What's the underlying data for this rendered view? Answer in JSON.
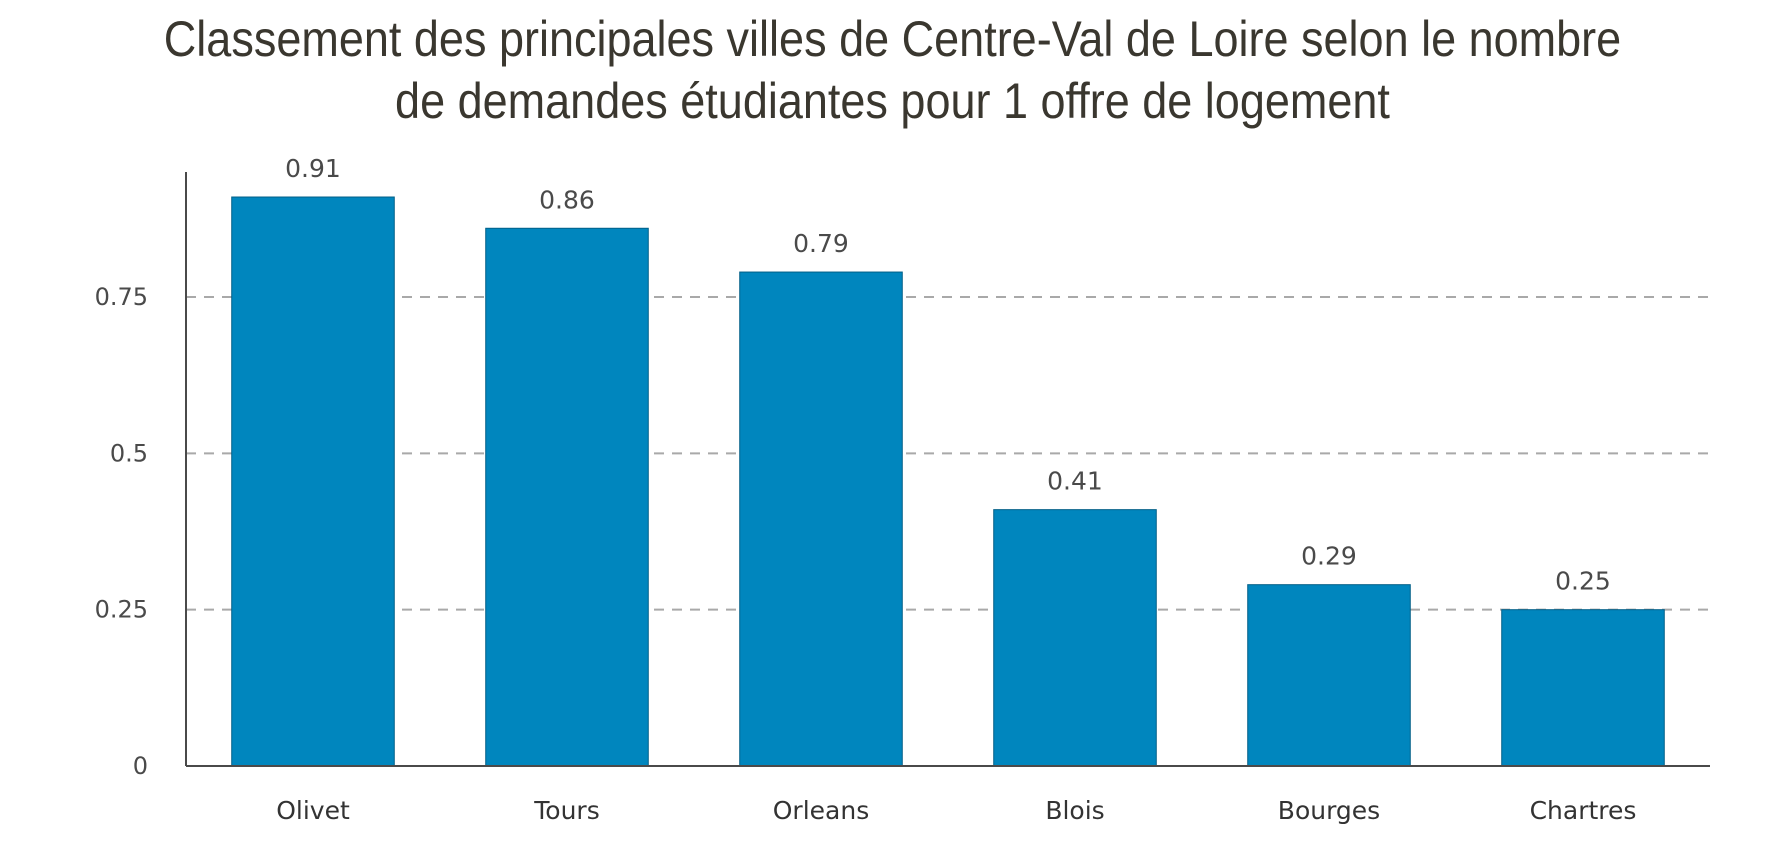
{
  "chart_data": {
    "type": "bar",
    "title_lines": [
      "Classement des principales villes de Centre-Val de Loire selon le nombre",
      "de demandes étudiantes pour 1 offre de logement"
    ],
    "categories": [
      "Olivet",
      "Tours",
      "Orleans",
      "Blois",
      "Bourges",
      "Chartres"
    ],
    "values": [
      0.91,
      0.86,
      0.79,
      0.41,
      0.29,
      0.25
    ],
    "data_labels": [
      "0.91",
      "0.86",
      "0.79",
      "0.41",
      "0.29",
      "0.25"
    ],
    "yticks": [
      0,
      0.25,
      0.5,
      0.75
    ],
    "ytick_labels": [
      "0",
      "0.25",
      "0.5",
      "0.75"
    ],
    "ylim": [
      0,
      0.95
    ],
    "xlabel": "",
    "ylabel": "",
    "grid": "horizontal dashed",
    "legend": "none",
    "colors": {
      "bar": "#0086be",
      "grid": "#a9a9a9",
      "axis": "#4a4a4a",
      "title": "#3a372f"
    }
  }
}
